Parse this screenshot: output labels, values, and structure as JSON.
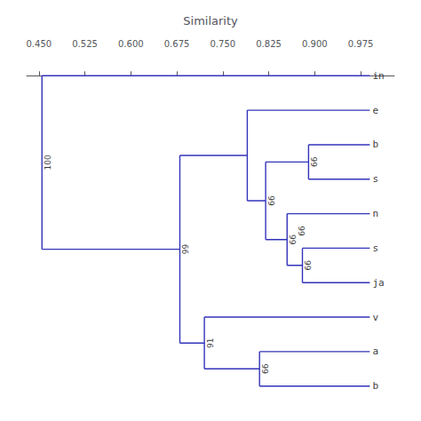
{
  "chart_data": {
    "type": "dendrogram",
    "xlabel": "Similarity",
    "leaves": [
      "in",
      "e",
      "b",
      "s",
      "n",
      "s",
      "ja",
      "v",
      "a",
      "b"
    ],
    "leaf_x": 0.99,
    "color": "#3333bb",
    "merges": [
      {
        "left": [
          2
        ],
        "right": [
          3
        ],
        "x": 0.89,
        "support": 66
      },
      {
        "left": [
          5
        ],
        "right": [
          6
        ],
        "x": 0.88,
        "support": 66
      },
      {
        "left": [
          4
        ],
        "right": [
          5,
          6
        ],
        "x": 0.855,
        "support": 66
      },
      {
        "left": [
          2,
          3
        ],
        "right": [
          4,
          5,
          6
        ],
        "x": 0.82,
        "support": 66
      },
      {
        "left": [
          1
        ],
        "right": [
          2,
          3,
          4,
          5,
          6
        ],
        "x": 0.79
      },
      {
        "left": [
          8
        ],
        "right": [
          9
        ],
        "x": 0.81,
        "support": 66
      },
      {
        "left": [
          7
        ],
        "right": [
          8,
          9
        ],
        "x": 0.72,
        "support": 91
      },
      {
        "left": [
          1,
          2,
          3,
          4,
          5,
          6
        ],
        "right": [
          7,
          8,
          9
        ],
        "x": 0.68,
        "support": 99
      },
      {
        "left": [
          0
        ],
        "right": [
          1,
          2,
          3,
          4,
          5,
          6,
          7,
          8,
          9
        ],
        "x": 0.455,
        "support": 100
      }
    ],
    "annotations": [
      {
        "x": 0.87,
        "between": [
          4,
          5
        ],
        "support": 66
      }
    ],
    "xlim": [
      0.43,
      1.03
    ],
    "xticks": [
      {
        "value": 0.45,
        "label": "0.450"
      },
      {
        "value": 0.525,
        "label": "0.525"
      },
      {
        "value": 0.6,
        "label": "0.600"
      },
      {
        "value": 0.675,
        "label": "0.675"
      },
      {
        "value": 0.75,
        "label": "0.750"
      },
      {
        "value": 0.825,
        "label": "0.825"
      },
      {
        "value": 0.9,
        "label": "0.900"
      },
      {
        "value": 0.975,
        "label": "0.975"
      }
    ],
    "grid": false
  }
}
